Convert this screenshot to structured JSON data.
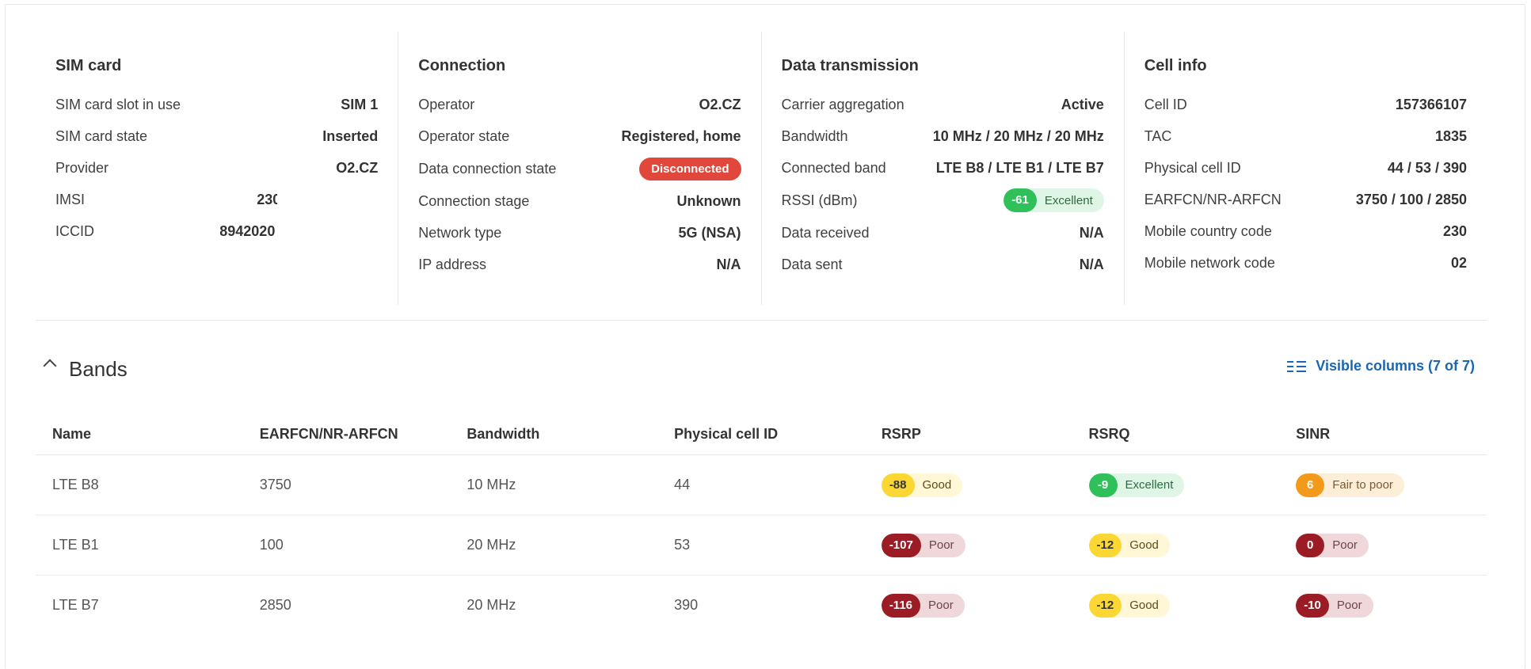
{
  "sim": {
    "title": "SIM card",
    "rows": [
      {
        "k": "SIM card slot in use",
        "v": "SIM 1"
      },
      {
        "k": "SIM card state",
        "v": "Inserted"
      },
      {
        "k": "Provider",
        "v": "O2.CZ"
      },
      {
        "k": "IMSI",
        "v": "230"
      },
      {
        "k": "ICCID",
        "v": "8942020"
      }
    ]
  },
  "connection": {
    "title": "Connection",
    "operator_label": "Operator",
    "operator": "O2.CZ",
    "operator_state_label": "Operator state",
    "operator_state": "Registered, home",
    "data_state_label": "Data connection state",
    "data_state": "Disconnected",
    "stage_label": "Connection stage",
    "stage": "Unknown",
    "network_label": "Network type",
    "network": "5G (NSA)",
    "ip_label": "IP address",
    "ip": "N/A"
  },
  "data_tx": {
    "title": "Data transmission",
    "ca_label": "Carrier aggregation",
    "ca": "Active",
    "bw_label": "Bandwidth",
    "bw": "10 MHz / 20 MHz / 20 MHz",
    "band_label": "Connected band",
    "band": "LTE B8 / LTE B1 / LTE B7",
    "rssi_label": "RSSI (dBm)",
    "rssi_value": "-61",
    "rssi_text": "Excellent",
    "rx_label": "Data received",
    "rx": "N/A",
    "tx_label": "Data sent",
    "tx": "N/A"
  },
  "cell": {
    "title": "Cell info",
    "rows": [
      {
        "k": "Cell ID",
        "v": "157366107"
      },
      {
        "k": "TAC",
        "v": "1835"
      },
      {
        "k": "Physical cell ID",
        "v": "44 / 53 / 390"
      },
      {
        "k": "EARFCN/NR-ARFCN",
        "v": "3750 / 100 / 2850"
      },
      {
        "k": "Mobile country code",
        "v": "230"
      },
      {
        "k": "Mobile network code",
        "v": "02"
      }
    ]
  },
  "bands": {
    "title": "Bands",
    "visible_columns": "Visible columns (7 of 7)",
    "headers": [
      "Name",
      "EARFCN/NR-ARFCN",
      "Bandwidth",
      "Physical cell ID",
      "RSRP",
      "RSRQ",
      "SINR"
    ],
    "rows": [
      {
        "name": "LTE B8",
        "earfcn": "3750",
        "bw": "10 MHz",
        "pci": "44",
        "rsrp": "-88",
        "rsrp_q": "Good",
        "rsrq": "-9",
        "rsrq_q": "Excellent",
        "sinr": "6",
        "sinr_q": "Fair to poor"
      },
      {
        "name": "LTE B1",
        "earfcn": "100",
        "bw": "20 MHz",
        "pci": "53",
        "rsrp": "-107",
        "rsrp_q": "Poor",
        "rsrq": "-12",
        "rsrq_q": "Good",
        "sinr": "0",
        "sinr_q": "Poor"
      },
      {
        "name": "LTE B7",
        "earfcn": "2850",
        "bw": "20 MHz",
        "pci": "390",
        "rsrp": "-116",
        "rsrp_q": "Poor",
        "rsrq": "-12",
        "rsrq_q": "Good",
        "sinr": "-10",
        "sinr_q": "Poor"
      }
    ]
  },
  "colors": {
    "accent": "#1a66b3",
    "danger": "#e2473b",
    "excellent": "#2fc05a",
    "good": "#fbd733",
    "fair": "#f49a1b",
    "poor": "#9c1c26"
  }
}
